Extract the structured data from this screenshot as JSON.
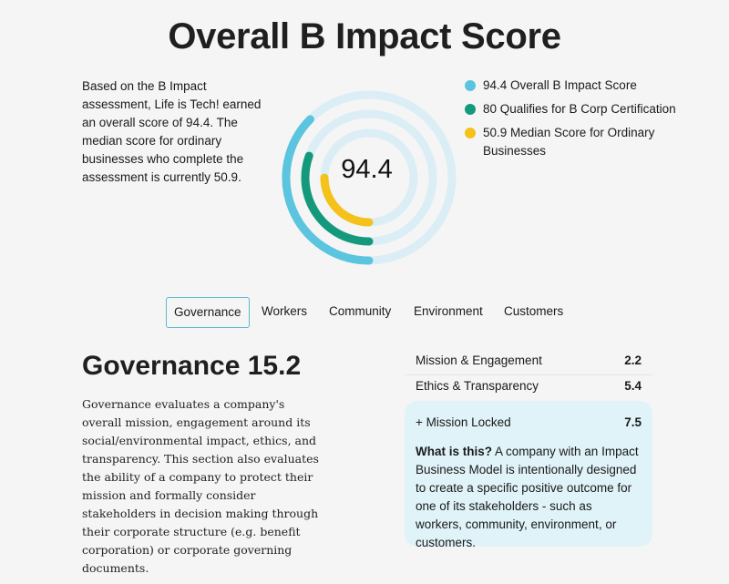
{
  "header": {
    "title": "Overall B Impact Score"
  },
  "intro": {
    "text": "Based on the B Impact assessment, Life is Tech! earned an overall score of 94.4. The median score for ordinary businesses who complete the assessment is currently 50.9."
  },
  "score": {
    "value": "94.4"
  },
  "legend": [
    {
      "label": "94.4 Overall B Impact Score",
      "color": "#5bc4de"
    },
    {
      "label": "80 Qualifies for B Corp Certification",
      "color": "#14997d"
    },
    {
      "label": "50.9 Median Score for Ordinary Businesses",
      "color": "#f4c21b"
    }
  ],
  "colors": {
    "track": "#dbeef5",
    "accent": "#5fb8cc"
  },
  "tabs": [
    {
      "label": "Governance"
    },
    {
      "label": "Workers"
    },
    {
      "label": "Community"
    },
    {
      "label": "Environment"
    },
    {
      "label": "Customers"
    }
  ],
  "section": {
    "title": "Governance 15.2",
    "description": "Governance evaluates a company's overall mission, engagement around its social/environmental impact, ethics, and transparency. This section also evaluates the ability of a company to protect their mission and formally consider stakeholders in decision making through their corporate structure (e.g. benefit corporation) or corporate governing documents."
  },
  "metrics": [
    {
      "label": "Mission & Engagement",
      "value": "2.2"
    },
    {
      "label": "Ethics & Transparency",
      "value": "5.4"
    }
  ],
  "highlight": {
    "label": "+ Mission Locked",
    "value": "7.5",
    "question": "What is this?",
    "text": " A company with an Impact Business Model is intentionally designed to create a specific positive outcome for one of its stakeholders - such as workers, community, environment, or customers."
  }
}
